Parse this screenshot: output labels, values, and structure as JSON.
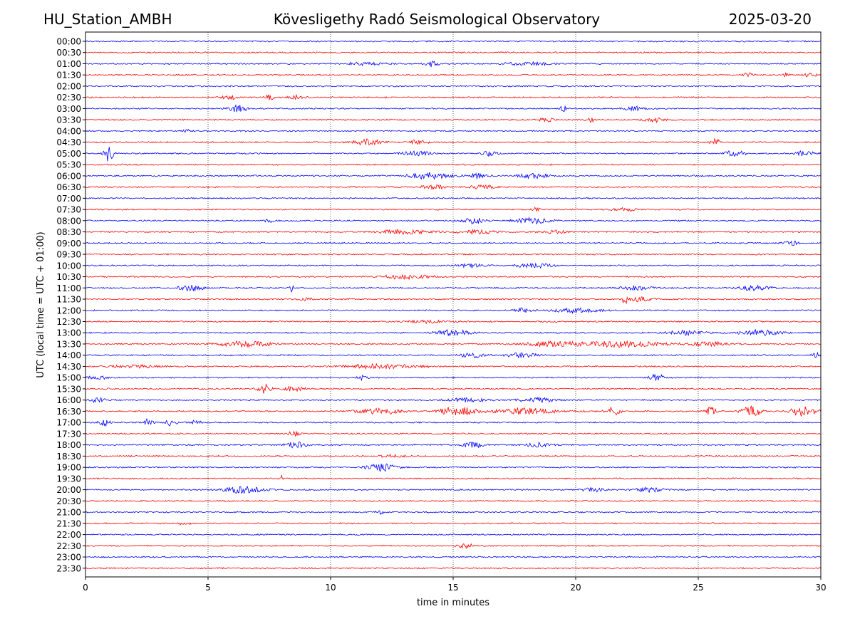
{
  "header": {
    "station": "HU_Station_AMBH",
    "observatory": "Kövesligethy Radó Seismological Observatory",
    "date": "2025-03-20"
  },
  "chart_data": {
    "type": "line",
    "title": "Kövesligethy Radó Seismological Observatory",
    "xlabel": "time in minutes",
    "ylabel": "UTC (local time = UTC + 01:00)",
    "xlim": [
      0,
      30
    ],
    "x_ticks": [
      0,
      5,
      10,
      15,
      20,
      25,
      30
    ],
    "x_tick_labels": [
      "0",
      "5",
      "10",
      "15",
      "20",
      "25",
      "30"
    ],
    "vertical_gridlines": [
      5,
      10,
      15,
      20,
      25
    ],
    "grid": "vertical dotted",
    "trace_colors": [
      "#0000ff",
      "#ff0000"
    ],
    "rows": [
      "00:00",
      "00:30",
      "01:00",
      "01:30",
      "02:00",
      "02:30",
      "03:00",
      "03:30",
      "04:00",
      "04:30",
      "05:00",
      "05:30",
      "06:00",
      "06:30",
      "07:00",
      "07:30",
      "08:00",
      "08:30",
      "09:00",
      "09:30",
      "10:00",
      "10:30",
      "11:00",
      "11:30",
      "12:00",
      "12:30",
      "13:00",
      "13:30",
      "14:00",
      "14:30",
      "15:00",
      "15:30",
      "16:00",
      "16:30",
      "17:00",
      "17:30",
      "18:00",
      "18:30",
      "19:00",
      "19:30",
      "20:00",
      "20:30",
      "21:00",
      "21:30",
      "22:00",
      "22:30",
      "23:00",
      "23:30"
    ],
    "bursts": [
      {
        "row": 2,
        "t": 14.1,
        "dur": 0.5,
        "amp": 4
      },
      {
        "row": 2,
        "t": 11.5,
        "dur": 1.6,
        "amp": 2
      },
      {
        "row": 2,
        "t": 18.0,
        "dur": 1.8,
        "amp": 2.5
      },
      {
        "row": 3,
        "t": 27.0,
        "dur": 0.4,
        "amp": 3
      },
      {
        "row": 3,
        "t": 28.6,
        "dur": 0.2,
        "amp": 3
      },
      {
        "row": 3,
        "t": 29.6,
        "dur": 0.4,
        "amp": 4
      },
      {
        "row": 5,
        "t": 5.9,
        "dur": 0.6,
        "amp": 3
      },
      {
        "row": 5,
        "t": 7.5,
        "dur": 0.3,
        "amp": 4
      },
      {
        "row": 5,
        "t": 8.6,
        "dur": 0.6,
        "amp": 3
      },
      {
        "row": 6,
        "t": 6.2,
        "dur": 0.7,
        "amp": 5
      },
      {
        "row": 6,
        "t": 19.5,
        "dur": 0.3,
        "amp": 4
      },
      {
        "row": 6,
        "t": 22.4,
        "dur": 0.8,
        "amp": 3
      },
      {
        "row": 7,
        "t": 18.8,
        "dur": 0.5,
        "amp": 3
      },
      {
        "row": 7,
        "t": 20.6,
        "dur": 0.3,
        "amp": 4
      },
      {
        "row": 7,
        "t": 23.2,
        "dur": 0.9,
        "amp": 3
      },
      {
        "row": 8,
        "t": 4.1,
        "dur": 0.3,
        "amp": 2
      },
      {
        "row": 9,
        "t": 11.5,
        "dur": 1.2,
        "amp": 4
      },
      {
        "row": 9,
        "t": 13.5,
        "dur": 0.8,
        "amp": 3
      },
      {
        "row": 9,
        "t": 25.7,
        "dur": 0.4,
        "amp": 4
      },
      {
        "row": 10,
        "t": 0.95,
        "dur": 0.35,
        "amp": 13
      },
      {
        "row": 10,
        "t": 13.5,
        "dur": 1.2,
        "amp": 3
      },
      {
        "row": 10,
        "t": 16.5,
        "dur": 0.6,
        "amp": 3
      },
      {
        "row": 10,
        "t": 26.5,
        "dur": 0.8,
        "amp": 4
      },
      {
        "row": 10,
        "t": 29.3,
        "dur": 0.8,
        "amp": 3
      },
      {
        "row": 12,
        "t": 14.0,
        "dur": 1.8,
        "amp": 4
      },
      {
        "row": 12,
        "t": 18.3,
        "dur": 1.2,
        "amp": 4
      },
      {
        "row": 12,
        "t": 16.0,
        "dur": 0.8,
        "amp": 3
      },
      {
        "row": 13,
        "t": 14.2,
        "dur": 0.9,
        "amp": 3
      },
      {
        "row": 13,
        "t": 16.2,
        "dur": 0.9,
        "amp": 3
      },
      {
        "row": 15,
        "t": 18.4,
        "dur": 0.3,
        "amp": 3
      },
      {
        "row": 15,
        "t": 22.0,
        "dur": 1.0,
        "amp": 2
      },
      {
        "row": 16,
        "t": 15.8,
        "dur": 1.0,
        "amp": 4
      },
      {
        "row": 16,
        "t": 18.3,
        "dur": 1.4,
        "amp": 4
      },
      {
        "row": 16,
        "t": 7.5,
        "dur": 0.4,
        "amp": 2
      },
      {
        "row": 17,
        "t": 13.0,
        "dur": 2.0,
        "amp": 3
      },
      {
        "row": 17,
        "t": 16.0,
        "dur": 1.5,
        "amp": 3
      },
      {
        "row": 17,
        "t": 19.2,
        "dur": 1.0,
        "amp": 2
      },
      {
        "row": 18,
        "t": 28.8,
        "dur": 0.6,
        "amp": 3
      },
      {
        "row": 20,
        "t": 15.8,
        "dur": 1.0,
        "amp": 3
      },
      {
        "row": 20,
        "t": 18.3,
        "dur": 1.4,
        "amp": 3
      },
      {
        "row": 21,
        "t": 13.0,
        "dur": 2.0,
        "amp": 3
      },
      {
        "row": 22,
        "t": 4.3,
        "dur": 1.0,
        "amp": 4
      },
      {
        "row": 22,
        "t": 8.4,
        "dur": 0.15,
        "amp": 6
      },
      {
        "row": 22,
        "t": 22.5,
        "dur": 1.3,
        "amp": 3
      },
      {
        "row": 22,
        "t": 27.3,
        "dur": 1.2,
        "amp": 4
      },
      {
        "row": 23,
        "t": 22.0,
        "dur": 0.2,
        "amp": 6
      },
      {
        "row": 23,
        "t": 22.6,
        "dur": 1.0,
        "amp": 3
      },
      {
        "row": 23,
        "t": 9.0,
        "dur": 0.6,
        "amp": 2
      },
      {
        "row": 24,
        "t": 17.8,
        "dur": 0.6,
        "amp": 3
      },
      {
        "row": 24,
        "t": 20.0,
        "dur": 1.8,
        "amp": 3
      },
      {
        "row": 25,
        "t": 14.0,
        "dur": 1.5,
        "amp": 2
      },
      {
        "row": 26,
        "t": 15.0,
        "dur": 1.4,
        "amp": 4
      },
      {
        "row": 26,
        "t": 24.5,
        "dur": 1.5,
        "amp": 3
      },
      {
        "row": 26,
        "t": 27.5,
        "dur": 1.5,
        "amp": 4
      },
      {
        "row": 27,
        "t": 6.5,
        "dur": 2.0,
        "amp": 4
      },
      {
        "row": 27,
        "t": 21.8,
        "dur": 3.5,
        "amp": 4
      },
      {
        "row": 27,
        "t": 19.0,
        "dur": 2.0,
        "amp": 3
      },
      {
        "row": 27,
        "t": 25.5,
        "dur": 1.5,
        "amp": 3
      },
      {
        "row": 28,
        "t": 15.8,
        "dur": 1.0,
        "amp": 3
      },
      {
        "row": 28,
        "t": 17.8,
        "dur": 1.4,
        "amp": 3
      },
      {
        "row": 28,
        "t": 29.8,
        "dur": 0.3,
        "amp": 5
      },
      {
        "row": 29,
        "t": 12.0,
        "dur": 3.0,
        "amp": 3
      },
      {
        "row": 29,
        "t": 2.0,
        "dur": 2.0,
        "amp": 2
      },
      {
        "row": 30,
        "t": 23.3,
        "dur": 0.5,
        "amp": 6
      },
      {
        "row": 30,
        "t": 11.3,
        "dur": 0.4,
        "amp": 3
      },
      {
        "row": 30,
        "t": 0.5,
        "dur": 1.0,
        "amp": 2
      },
      {
        "row": 31,
        "t": 7.3,
        "dur": 0.5,
        "amp": 6
      },
      {
        "row": 31,
        "t": 8.5,
        "dur": 0.8,
        "amp": 3
      },
      {
        "row": 32,
        "t": 0.5,
        "dur": 0.6,
        "amp": 3
      },
      {
        "row": 32,
        "t": 15.5,
        "dur": 1.5,
        "amp": 3
      },
      {
        "row": 32,
        "t": 18.5,
        "dur": 1.5,
        "amp": 3
      },
      {
        "row": 33,
        "t": 12.0,
        "dur": 1.8,
        "amp": 4
      },
      {
        "row": 33,
        "t": 15.2,
        "dur": 1.5,
        "amp": 6
      },
      {
        "row": 33,
        "t": 21.5,
        "dur": 0.6,
        "amp": 6
      },
      {
        "row": 33,
        "t": 25.5,
        "dur": 0.4,
        "amp": 6
      },
      {
        "row": 33,
        "t": 27.2,
        "dur": 0.8,
        "amp": 7
      },
      {
        "row": 33,
        "t": 29.3,
        "dur": 1.0,
        "amp": 7
      },
      {
        "row": 33,
        "t": 18.0,
        "dur": 2.5,
        "amp": 4
      },
      {
        "row": 34,
        "t": 0.8,
        "dur": 0.4,
        "amp": 6
      },
      {
        "row": 34,
        "t": 2.5,
        "dur": 0.4,
        "amp": 5
      },
      {
        "row": 34,
        "t": 3.5,
        "dur": 0.4,
        "amp": 5
      },
      {
        "row": 34,
        "t": 4.5,
        "dur": 0.4,
        "amp": 4
      },
      {
        "row": 35,
        "t": 8.5,
        "dur": 0.5,
        "amp": 3
      },
      {
        "row": 36,
        "t": 8.6,
        "dur": 0.8,
        "amp": 4
      },
      {
        "row": 36,
        "t": 15.8,
        "dur": 0.8,
        "amp": 4
      },
      {
        "row": 36,
        "t": 18.5,
        "dur": 1.0,
        "amp": 3
      },
      {
        "row": 37,
        "t": 12.5,
        "dur": 1.0,
        "amp": 2
      },
      {
        "row": 38,
        "t": 12.1,
        "dur": 1.2,
        "amp": 5
      },
      {
        "row": 39,
        "t": 8.0,
        "dur": 0.1,
        "amp": 4
      },
      {
        "row": 40,
        "t": 6.5,
        "dur": 1.6,
        "amp": 5
      },
      {
        "row": 40,
        "t": 20.7,
        "dur": 0.8,
        "amp": 3
      },
      {
        "row": 40,
        "t": 23.0,
        "dur": 1.0,
        "amp": 3
      },
      {
        "row": 42,
        "t": 12.0,
        "dur": 0.3,
        "amp": 3
      },
      {
        "row": 43,
        "t": 4.0,
        "dur": 0.5,
        "amp": 2
      },
      {
        "row": 45,
        "t": 15.5,
        "dur": 0.6,
        "amp": 3
      }
    ]
  }
}
